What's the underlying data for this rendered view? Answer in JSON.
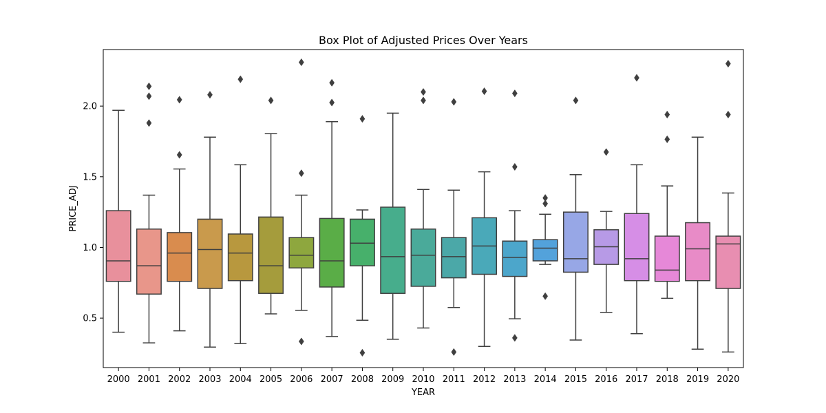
{
  "chart_data": {
    "type": "box",
    "title": "Box Plot of Adjusted Prices Over Years",
    "xlabel": "YEAR",
    "ylabel": "PRICE_ADJ",
    "ylim": [
      0.15,
      2.4
    ],
    "yticks": [
      0.5,
      1.0,
      1.5,
      2.0
    ],
    "ytick_labels": [
      "0.5",
      "1.0",
      "1.5",
      "2.0"
    ],
    "grid": false,
    "categories": [
      "2000",
      "2001",
      "2002",
      "2003",
      "2004",
      "2005",
      "2006",
      "2007",
      "2008",
      "2009",
      "2010",
      "2011",
      "2012",
      "2013",
      "2014",
      "2015",
      "2016",
      "2017",
      "2018",
      "2019",
      "2020"
    ],
    "colors": [
      "#e8909c",
      "#e8968a",
      "#d98c4e",
      "#c99a4c",
      "#b8983e",
      "#a59c3c",
      "#8ea73e",
      "#5aad47",
      "#47b06b",
      "#47ad8c",
      "#4aaa9a",
      "#4ba8a8",
      "#4aa9b9",
      "#4ca6cb",
      "#53a2db",
      "#97a7e6",
      "#b79ae6",
      "#d68ee6",
      "#e688d8",
      "#e88bc7",
      "#e88eb1"
    ],
    "boxes": [
      {
        "whislo": 0.4,
        "q1": 0.76,
        "med": 0.905,
        "q3": 1.26,
        "whishi": 1.97,
        "fliers": []
      },
      {
        "whislo": 0.325,
        "q1": 0.67,
        "med": 0.87,
        "q3": 1.13,
        "whishi": 1.37,
        "fliers": [
          1.88,
          2.07,
          2.14
        ]
      },
      {
        "whislo": 0.41,
        "q1": 0.76,
        "med": 0.96,
        "q3": 1.105,
        "whishi": 1.555,
        "fliers": [
          1.655,
          2.045
        ]
      },
      {
        "whislo": 0.295,
        "q1": 0.71,
        "med": 0.985,
        "q3": 1.2,
        "whishi": 1.78,
        "fliers": [
          2.08
        ]
      },
      {
        "whislo": 0.32,
        "q1": 0.765,
        "med": 0.96,
        "q3": 1.095,
        "whishi": 1.585,
        "fliers": [
          2.19
        ]
      },
      {
        "whislo": 0.53,
        "q1": 0.675,
        "med": 0.87,
        "q3": 1.215,
        "whishi": 1.805,
        "fliers": [
          2.04
        ]
      },
      {
        "whislo": 0.555,
        "q1": 0.855,
        "med": 0.945,
        "q3": 1.07,
        "whishi": 1.37,
        "fliers": [
          0.335,
          1.525,
          2.31
        ]
      },
      {
        "whislo": 0.37,
        "q1": 0.72,
        "med": 0.905,
        "q3": 1.205,
        "whishi": 1.89,
        "fliers": [
          2.025,
          2.165
        ]
      },
      {
        "whislo": 0.485,
        "q1": 0.87,
        "med": 1.03,
        "q3": 1.2,
        "whishi": 1.265,
        "fliers": [
          0.255,
          1.91
        ]
      },
      {
        "whislo": 0.35,
        "q1": 0.675,
        "med": 0.935,
        "q3": 1.285,
        "whishi": 1.95,
        "fliers": []
      },
      {
        "whislo": 0.43,
        "q1": 0.725,
        "med": 0.945,
        "q3": 1.13,
        "whishi": 1.41,
        "fliers": [
          2.04,
          2.1
        ]
      },
      {
        "whislo": 0.575,
        "q1": 0.785,
        "med": 0.935,
        "q3": 1.07,
        "whishi": 1.405,
        "fliers": [
          0.26,
          2.03
        ]
      },
      {
        "whislo": 0.3,
        "q1": 0.81,
        "med": 1.01,
        "q3": 1.21,
        "whishi": 1.535,
        "fliers": [
          2.105
        ]
      },
      {
        "whislo": 0.495,
        "q1": 0.795,
        "med": 0.93,
        "q3": 1.045,
        "whishi": 1.26,
        "fliers": [
          0.36,
          1.57,
          2.09
        ]
      },
      {
        "whislo": 0.88,
        "q1": 0.905,
        "med": 0.995,
        "q3": 1.055,
        "whishi": 1.235,
        "fliers": [
          0.655,
          1.31,
          1.35
        ]
      },
      {
        "whislo": 0.345,
        "q1": 0.825,
        "med": 0.92,
        "q3": 1.25,
        "whishi": 1.515,
        "fliers": [
          2.04
        ]
      },
      {
        "whislo": 0.54,
        "q1": 0.88,
        "med": 1.005,
        "q3": 1.125,
        "whishi": 1.255,
        "fliers": [
          1.675
        ]
      },
      {
        "whislo": 0.39,
        "q1": 0.765,
        "med": 0.92,
        "q3": 1.24,
        "whishi": 1.585,
        "fliers": [
          2.2
        ]
      },
      {
        "whislo": 0.64,
        "q1": 0.76,
        "med": 0.84,
        "q3": 1.08,
        "whishi": 1.435,
        "fliers": [
          1.765,
          1.94
        ]
      },
      {
        "whislo": 0.28,
        "q1": 0.765,
        "med": 0.99,
        "q3": 1.175,
        "whishi": 1.78,
        "fliers": []
      },
      {
        "whislo": 0.26,
        "q1": 0.71,
        "med": 1.025,
        "q3": 1.08,
        "whishi": 1.385,
        "fliers": [
          1.94,
          2.3
        ]
      }
    ]
  }
}
